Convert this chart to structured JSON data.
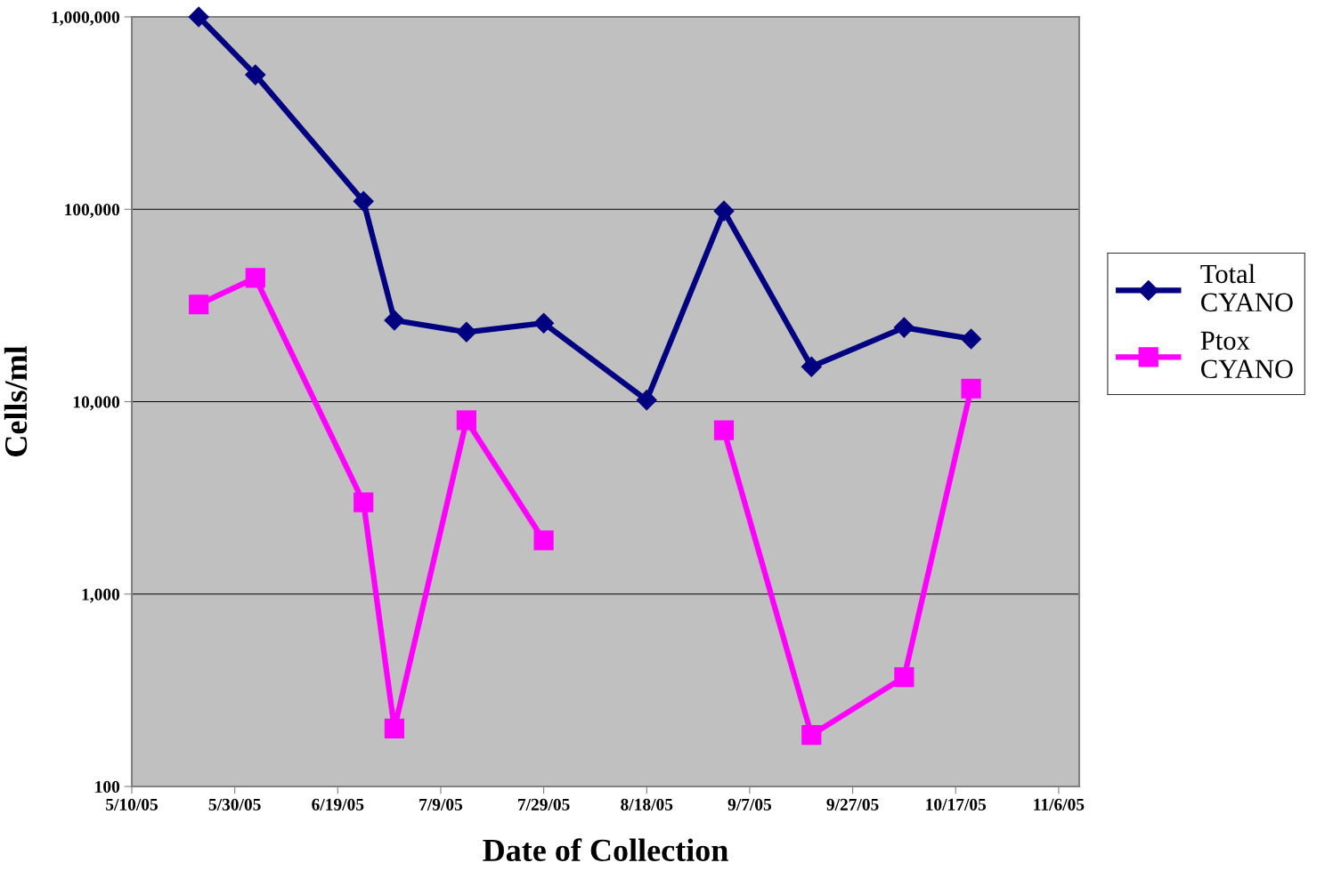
{
  "chart_data": {
    "type": "line",
    "xlabel": "Date of Collection",
    "ylabel": "Cells/ml",
    "x": [
      "2005-05-23",
      "2005-06-03",
      "2005-06-24",
      "2005-06-30",
      "2005-07-14",
      "2005-07-29",
      "2005-08-18",
      "2005-09-02",
      "2005-09-19",
      "2005-10-07",
      "2005-10-20"
    ],
    "series": [
      {
        "name": "Total\nCYANO",
        "color": "#000080",
        "marker": "diamond",
        "values": [
          1000000,
          500000,
          110000,
          26500,
          23000,
          25600,
          10200,
          98000,
          15200,
          24300,
          21200
        ]
      },
      {
        "name": "Ptox\nCYANO",
        "color": "#ff00ff",
        "marker": "square",
        "values": [
          32000,
          44000,
          3000,
          200,
          8000,
          1900,
          null,
          7100,
          185,
          370,
          11700
        ]
      }
    ],
    "log": "y",
    "ylim": [
      100,
      1000000
    ],
    "yticks": [
      {
        "value": 100,
        "label": "100"
      },
      {
        "value": 1000,
        "label": "1,000"
      },
      {
        "value": 10000,
        "label": "10,000"
      },
      {
        "value": 100000,
        "label": "100,000"
      },
      {
        "value": 1000000,
        "label": "1,000,000"
      }
    ],
    "xlim": [
      "2005-05-10",
      "2005-11-10"
    ],
    "xticks": [
      {
        "value": "2005-05-10",
        "label": "5/10/05"
      },
      {
        "value": "2005-05-30",
        "label": "5/30/05"
      },
      {
        "value": "2005-06-19",
        "label": "6/19/05"
      },
      {
        "value": "2005-07-09",
        "label": "7/9/05"
      },
      {
        "value": "2005-07-29",
        "label": "7/29/05"
      },
      {
        "value": "2005-08-18",
        "label": "8/18/05"
      },
      {
        "value": "2005-09-07",
        "label": "9/7/05"
      },
      {
        "value": "2005-09-27",
        "label": "9/27/05"
      },
      {
        "value": "2005-10-17",
        "label": "10/17/05"
      },
      {
        "value": "2005-11-06",
        "label": "11/6/05"
      }
    ],
    "grid": "y",
    "legend": "right",
    "line_style": "solid"
  }
}
